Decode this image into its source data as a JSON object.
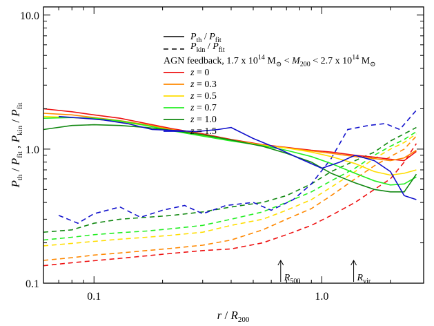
{
  "chart_data": {
    "type": "line",
    "xlabel_main": "r",
    "xlabel_sub_base": "R",
    "xlabel_sub": "200",
    "ylabel_parts": [
      "P",
      "th",
      " / ",
      "P",
      "fit",
      " , ",
      "P",
      "kin",
      " / ",
      "P",
      "fit"
    ],
    "x_scale": "log",
    "y_scale": "log",
    "xlim": [
      0.06,
      2.8
    ],
    "ylim": [
      0.1,
      11.5
    ],
    "x_ticks": [
      {
        "value": 0.1,
        "label": "0.1"
      },
      {
        "value": 1.0,
        "label": "1.0"
      }
    ],
    "y_ticks": [
      {
        "value": 0.1,
        "label": "0.1"
      },
      {
        "value": 1.0,
        "label": "1.0"
      },
      {
        "value": 10.0,
        "label": "10.0"
      }
    ],
    "legend_styles": [
      {
        "style": "solid",
        "parts": [
          "P",
          "th",
          " / ",
          "P",
          "fit"
        ]
      },
      {
        "style": "dashed",
        "parts": [
          "P",
          "kin",
          " / ",
          "P",
          "fit"
        ]
      }
    ],
    "legend_title": {
      "prefix": "AGN feedback, 1.7 x 10",
      "exp1": "14",
      "msun1": " M",
      "mid1": " < ",
      "m200": "M",
      "m200_sub": "200",
      "mid2": " < 2.7 x 10",
      "exp2": "14",
      "msun2": " M"
    },
    "legend_placement": "top-center",
    "annotations": [
      {
        "label": "R",
        "sub": "500",
        "x": 0.66
      },
      {
        "label": "R",
        "sub": "vir",
        "x": 1.38
      }
    ],
    "series": [
      {
        "name": "z = 0",
        "label": "0",
        "color": "#ee1111",
        "solid": {
          "x": [
            0.06,
            0.08,
            0.1,
            0.13,
            0.17,
            0.22,
            0.3,
            0.4,
            0.55,
            0.7,
            0.9,
            1.1,
            1.4,
            1.7,
            2.0,
            2.3,
            2.6
          ],
          "y": [
            2.0,
            1.9,
            1.8,
            1.7,
            1.55,
            1.42,
            1.3,
            1.18,
            1.08,
            1.03,
            0.98,
            0.95,
            0.9,
            0.87,
            0.84,
            0.82,
            0.96
          ]
        },
        "dashed": {
          "x": [
            0.06,
            0.08,
            0.1,
            0.13,
            0.17,
            0.22,
            0.3,
            0.4,
            0.55,
            0.7,
            0.9,
            1.1,
            1.4,
            1.7,
            2.0,
            2.3,
            2.6
          ],
          "y": [
            0.135,
            0.142,
            0.147,
            0.153,
            0.16,
            0.167,
            0.175,
            0.18,
            0.2,
            0.23,
            0.27,
            0.32,
            0.4,
            0.5,
            0.6,
            0.8,
            1.1
          ]
        }
      },
      {
        "name": "z = 0.3",
        "label": "0.3",
        "color": "#ff8800",
        "solid": {
          "x": [
            0.06,
            0.08,
            0.1,
            0.13,
            0.17,
            0.22,
            0.3,
            0.4,
            0.55,
            0.7,
            0.9,
            1.1,
            1.4,
            1.7,
            2.0,
            2.3,
            2.6
          ],
          "y": [
            1.85,
            1.8,
            1.72,
            1.63,
            1.52,
            1.4,
            1.28,
            1.17,
            1.07,
            1.02,
            0.97,
            0.93,
            0.88,
            0.85,
            0.82,
            0.86,
            0.98
          ]
        },
        "dashed": {
          "x": [
            0.06,
            0.08,
            0.1,
            0.13,
            0.17,
            0.22,
            0.3,
            0.4,
            0.55,
            0.7,
            0.9,
            1.1,
            1.4,
            1.7,
            2.0,
            2.3,
            2.6
          ],
          "y": [
            0.148,
            0.155,
            0.162,
            0.168,
            0.175,
            0.182,
            0.192,
            0.21,
            0.25,
            0.3,
            0.36,
            0.45,
            0.6,
            0.75,
            0.88,
            1.0,
            1.25
          ]
        }
      },
      {
        "name": "z = 0.5",
        "label": "0.5",
        "color": "#ffdd00",
        "solid": {
          "x": [
            0.06,
            0.08,
            0.1,
            0.13,
            0.17,
            0.22,
            0.3,
            0.4,
            0.55,
            0.7,
            0.9,
            1.1,
            1.4,
            1.7,
            2.0,
            2.3,
            2.6
          ],
          "y": [
            1.75,
            1.72,
            1.68,
            1.6,
            1.5,
            1.38,
            1.26,
            1.16,
            1.07,
            1.02,
            0.95,
            0.88,
            0.78,
            0.68,
            0.64,
            0.66,
            0.7
          ]
        },
        "dashed": {
          "x": [
            0.06,
            0.08,
            0.1,
            0.13,
            0.17,
            0.22,
            0.3,
            0.4,
            0.55,
            0.7,
            0.9,
            1.1,
            1.4,
            1.7,
            2.0,
            2.3,
            2.6
          ],
          "y": [
            0.19,
            0.198,
            0.205,
            0.213,
            0.22,
            0.228,
            0.24,
            0.27,
            0.3,
            0.35,
            0.42,
            0.52,
            0.68,
            0.85,
            1.0,
            1.12,
            1.3
          ]
        }
      },
      {
        "name": "z = 0.7",
        "label": "0.7",
        "color": "#22ee22",
        "solid": {
          "x": [
            0.06,
            0.08,
            0.1,
            0.13,
            0.17,
            0.22,
            0.3,
            0.4,
            0.55,
            0.7,
            0.9,
            1.1,
            1.4,
            1.7,
            2.0,
            2.3,
            2.6
          ],
          "y": [
            1.7,
            1.72,
            1.7,
            1.62,
            1.5,
            1.37,
            1.25,
            1.15,
            1.06,
            0.98,
            0.88,
            0.78,
            0.66,
            0.58,
            0.54,
            0.55,
            0.62
          ]
        },
        "dashed": {
          "x": [
            0.06,
            0.08,
            0.1,
            0.13,
            0.17,
            0.22,
            0.3,
            0.4,
            0.55,
            0.7,
            0.9,
            1.1,
            1.4,
            1.7,
            2.0,
            2.3,
            2.6
          ],
          "y": [
            0.21,
            0.22,
            0.23,
            0.238,
            0.245,
            0.255,
            0.27,
            0.3,
            0.34,
            0.4,
            0.48,
            0.58,
            0.72,
            0.9,
            1.05,
            1.18,
            1.35
          ]
        }
      },
      {
        "name": "z = 1.0",
        "label": "1.0",
        "color": "#118811",
        "solid": {
          "x": [
            0.06,
            0.08,
            0.1,
            0.13,
            0.17,
            0.22,
            0.3,
            0.4,
            0.55,
            0.7,
            0.9,
            1.1,
            1.4,
            1.7,
            2.0,
            2.3,
            2.6
          ],
          "y": [
            1.4,
            1.5,
            1.52,
            1.5,
            1.45,
            1.38,
            1.28,
            1.17,
            1.05,
            0.93,
            0.8,
            0.66,
            0.56,
            0.5,
            0.48,
            0.48,
            0.65
          ]
        },
        "dashed": {
          "x": [
            0.06,
            0.08,
            0.1,
            0.13,
            0.17,
            0.22,
            0.3,
            0.4,
            0.55,
            0.7,
            0.9,
            1.1,
            1.4,
            1.7,
            2.0,
            2.3,
            2.6
          ],
          "y": [
            0.24,
            0.25,
            0.28,
            0.3,
            0.31,
            0.32,
            0.34,
            0.37,
            0.4,
            0.45,
            0.55,
            0.68,
            0.82,
            0.95,
            1.15,
            1.3,
            1.45
          ]
        }
      },
      {
        "name": "z = 1.5",
        "label": "1.5",
        "color": "#1111cc",
        "solid": {
          "x": [
            0.07,
            0.09,
            0.11,
            0.14,
            0.18,
            0.22,
            0.28,
            0.35,
            0.4,
            0.5,
            0.65,
            0.8,
            1.0,
            1.2,
            1.4,
            1.7,
            2.0,
            2.3,
            2.6
          ],
          "y": [
            1.75,
            1.7,
            1.65,
            1.55,
            1.4,
            1.38,
            1.35,
            1.4,
            1.45,
            1.2,
            1.0,
            0.85,
            0.72,
            0.8,
            0.9,
            0.82,
            0.68,
            0.45,
            0.42
          ]
        },
        "dashed": {
          "x": [
            0.07,
            0.085,
            0.1,
            0.13,
            0.16,
            0.2,
            0.25,
            0.3,
            0.38,
            0.5,
            0.6,
            0.75,
            0.9,
            1.1,
            1.3,
            1.6,
            1.9,
            2.2,
            2.6
          ],
          "y": [
            0.32,
            0.28,
            0.33,
            0.37,
            0.31,
            0.35,
            0.38,
            0.33,
            0.38,
            0.4,
            0.35,
            0.42,
            0.55,
            0.85,
            1.4,
            1.5,
            1.55,
            1.4,
            1.95
          ]
        }
      }
    ]
  }
}
